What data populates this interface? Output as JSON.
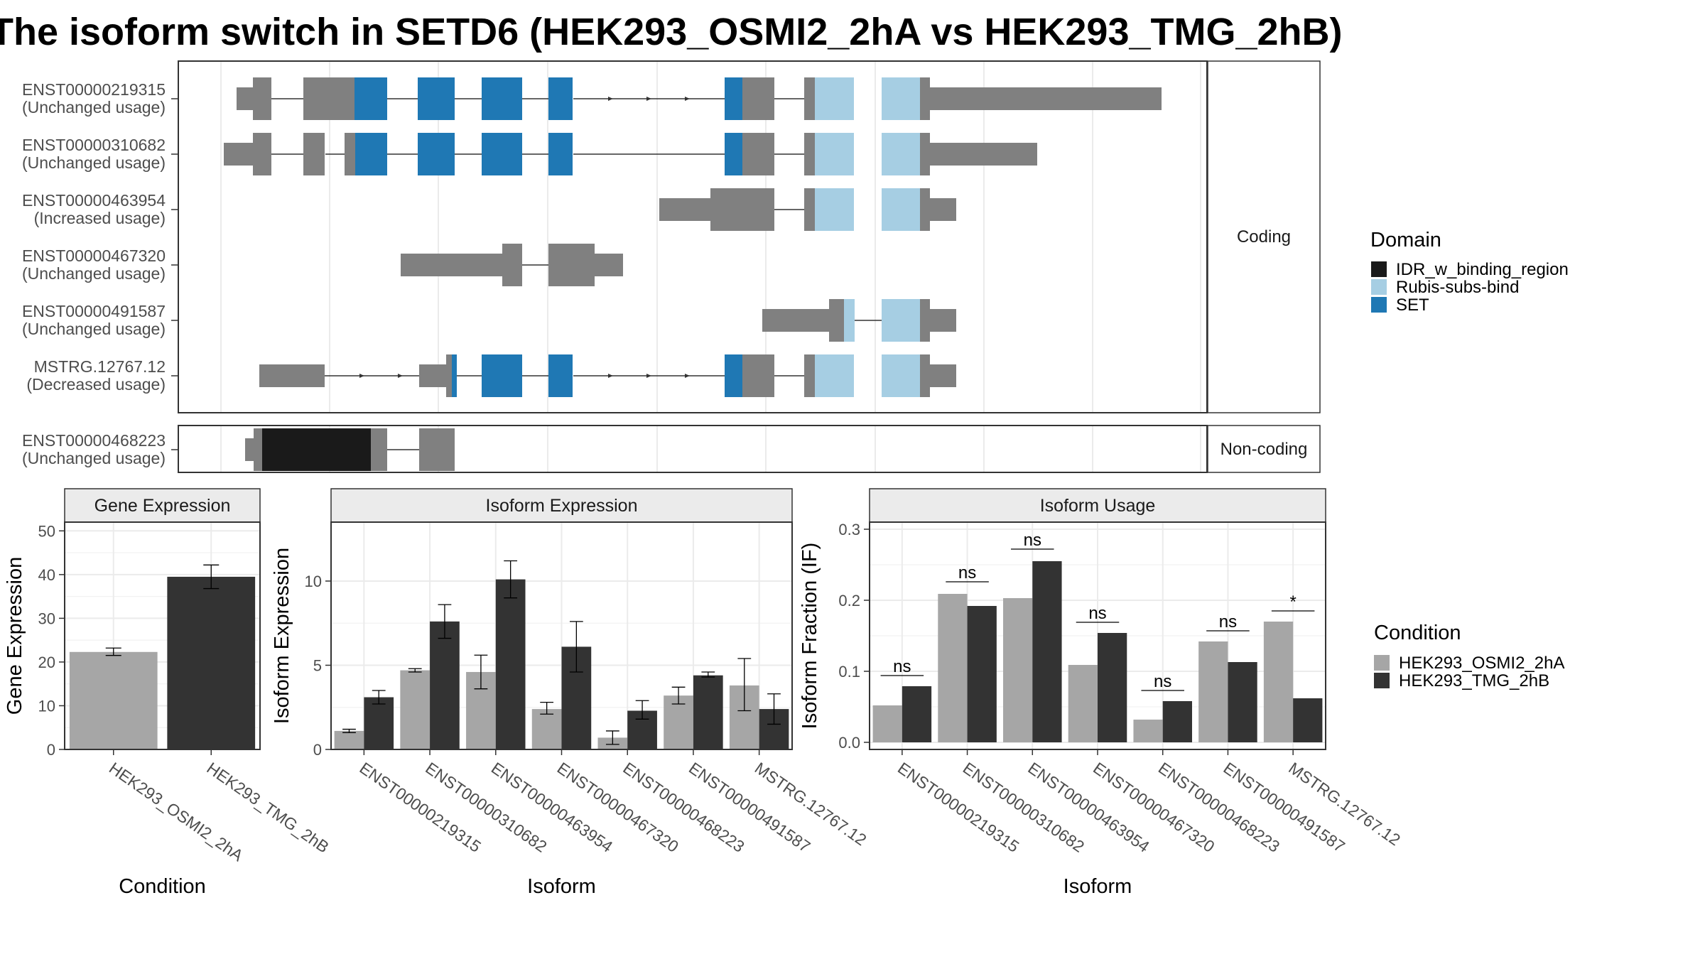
{
  "title": "The isoform switch in SETD6 (HEK293_OSMI2_2hA vs HEK293_TMG_2hB)",
  "colors": {
    "exon": "#808080",
    "IDR_w_binding_region": "#1a1a1a",
    "Rubis-subs-bind": "#a6cee3",
    "SET": "#1f78b4",
    "cond1": "#a6a6a6",
    "cond2": "#333333"
  },
  "chart_data": [
    {
      "type": "gene-structure",
      "panel_labels": {
        "coding": "Coding",
        "noncoding": "Non-coding"
      },
      "isoforms": [
        {
          "id": "ENST00000219315",
          "usage": "(Unchanged usage)",
          "group": "coding"
        },
        {
          "id": "ENST00000310682",
          "usage": "(Unchanged usage)",
          "group": "coding"
        },
        {
          "id": "ENST00000463954",
          "usage": "(Increased usage)",
          "group": "coding"
        },
        {
          "id": "ENST00000467320",
          "usage": "(Unchanged usage)",
          "group": "coding"
        },
        {
          "id": "ENST00000491587",
          "usage": "(Unchanged usage)",
          "group": "coding"
        },
        {
          "id": "MSTRG.12767.12",
          "usage": "(Decreased usage)",
          "group": "coding"
        },
        {
          "id": "ENST00000468223",
          "usage": "(Unchanged usage)",
          "group": "noncoding"
        }
      ],
      "legend": {
        "title": "Domain",
        "entries": [
          "IDR_w_binding_region",
          "Rubis-subs-bind",
          "SET"
        ]
      }
    },
    {
      "type": "bar",
      "title": "Gene Expression",
      "xlabel": "Condition",
      "ylabel": "Gene Expression",
      "ylim": [
        0,
        52
      ],
      "yticks": [
        0,
        10,
        20,
        30,
        40,
        50
      ],
      "categories": [
        "HEK293_OSMI2_2hA",
        "HEK293_TMG_2hB"
      ],
      "values": [
        22.3,
        39.5
      ],
      "errors": [
        [
          21.5,
          23.2
        ],
        [
          36.8,
          42.2
        ]
      ]
    },
    {
      "type": "bar",
      "title": "Isoform Expression",
      "xlabel": "Isoform",
      "ylabel": "Isoform Expression",
      "ylim": [
        0,
        13.5
      ],
      "yticks": [
        0,
        5,
        10
      ],
      "categories": [
        "ENST00000219315",
        "ENST00000310682",
        "ENST00000463954",
        "ENST00000467320",
        "ENST00000468223",
        "ENST00000491587",
        "MSTRG.12767.12"
      ],
      "series": [
        {
          "name": "HEK293_OSMI2_2hA",
          "values": [
            1.1,
            4.7,
            4.6,
            2.4,
            0.7,
            3.2,
            3.8
          ],
          "errors": [
            [
              1.0,
              1.2
            ],
            [
              4.6,
              4.8
            ],
            [
              3.6,
              5.6
            ],
            [
              2.1,
              2.8
            ],
            [
              0.3,
              1.1
            ],
            [
              2.7,
              3.7
            ],
            [
              2.3,
              5.4
            ]
          ]
        },
        {
          "name": "HEK293_TMG_2hB",
          "values": [
            3.1,
            7.6,
            10.1,
            6.1,
            2.3,
            4.4,
            2.4
          ],
          "errors": [
            [
              2.7,
              3.5
            ],
            [
              6.6,
              8.6
            ],
            [
              9.0,
              11.2
            ],
            [
              4.6,
              7.6
            ],
            [
              1.8,
              2.9
            ],
            [
              4.3,
              4.6
            ],
            [
              1.5,
              3.3
            ]
          ]
        }
      ]
    },
    {
      "type": "bar",
      "title": "Isoform Usage",
      "xlabel": "Isoform",
      "ylabel": "Isoform Fraction (IF)",
      "ylim": [
        -0.01,
        0.31
      ],
      "yticks": [
        0.0,
        0.1,
        0.2,
        0.3
      ],
      "ytick_labels": [
        "0.0",
        "0.1",
        "0.2",
        "0.3"
      ],
      "categories": [
        "ENST00000219315",
        "ENST00000310682",
        "ENST00000463954",
        "ENST00000467320",
        "ENST00000468223",
        "ENST00000491587",
        "MSTRG.12767.12"
      ],
      "series": [
        {
          "name": "HEK293_OSMI2_2hA",
          "values": [
            0.052,
            0.209,
            0.203,
            0.109,
            0.032,
            0.142,
            0.17
          ]
        },
        {
          "name": "HEK293_TMG_2hB",
          "values": [
            0.079,
            0.192,
            0.255,
            0.154,
            0.058,
            0.113,
            0.062
          ]
        }
      ],
      "significance": [
        "ns",
        "ns",
        "ns",
        "ns",
        "ns",
        "ns",
        "*"
      ],
      "significance_levels": [
        0.094,
        0.226,
        0.272,
        0.169,
        0.073,
        0.157,
        0.185
      ]
    }
  ],
  "condition_legend": {
    "title": "Condition",
    "entries": [
      "HEK293_OSMI2_2hA",
      "HEK293_TMG_2hB"
    ]
  }
}
